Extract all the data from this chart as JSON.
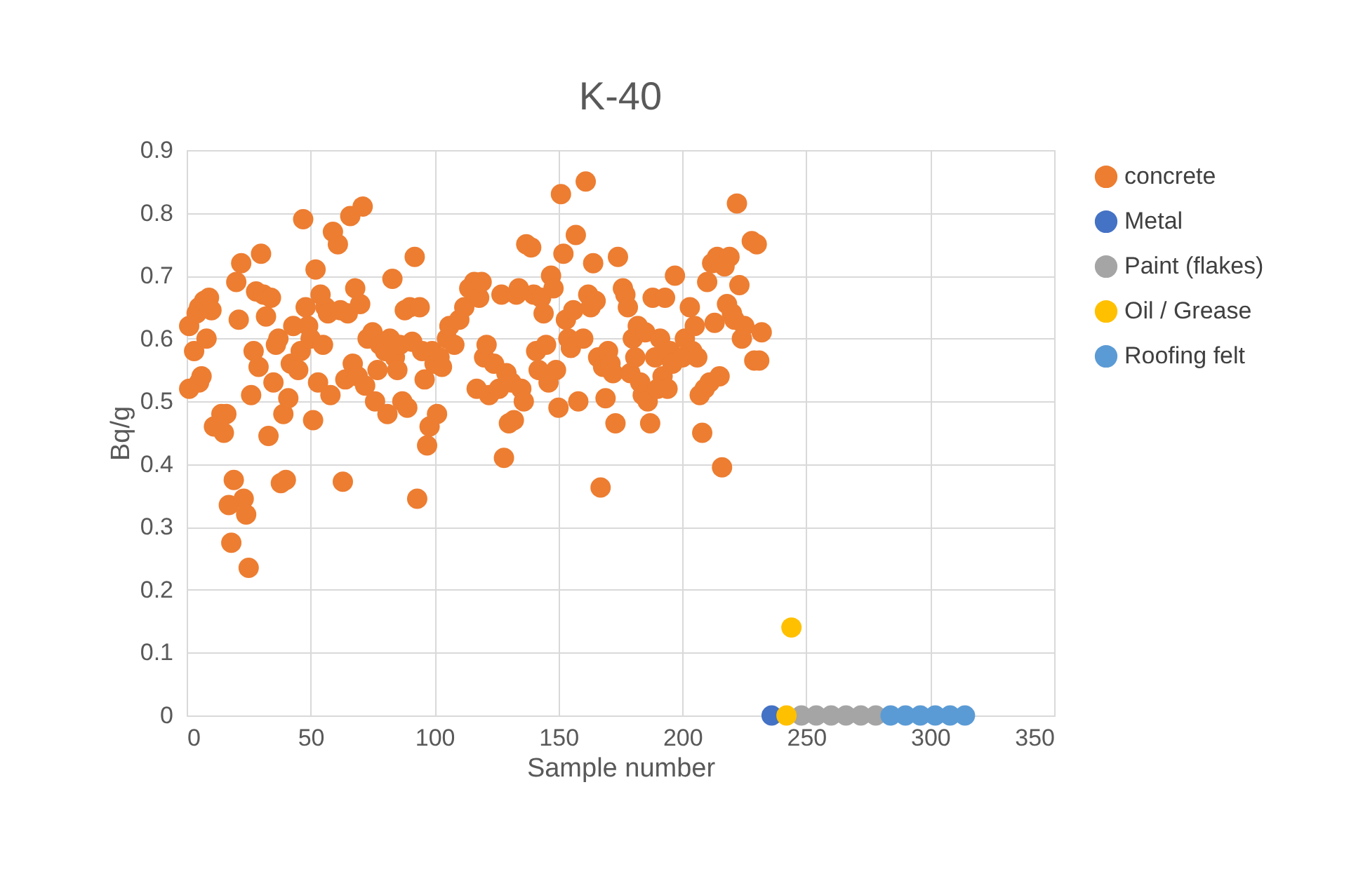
{
  "chart_data": {
    "type": "scatter",
    "title": "K-40",
    "xlabel": "Sample number",
    "ylabel": "Bq/g",
    "xlim": [
      0,
      350
    ],
    "xticks": [
      0,
      50,
      100,
      150,
      200,
      250,
      300,
      350
    ],
    "ylim": [
      0,
      0.9
    ],
    "yticks": [
      {
        "value": 0,
        "label": "0"
      },
      0.1,
      0.2,
      0.3,
      0.4,
      0.5,
      0.6,
      0.7,
      0.8,
      0.9
    ],
    "grid": true,
    "legend": "right",
    "marker": "circle",
    "series": [
      {
        "name": "concrete",
        "color": "#ed7d31",
        "x": [
          1,
          1,
          3,
          4,
          5,
          5,
          6,
          7,
          8,
          9,
          10,
          11,
          14,
          15,
          16,
          17,
          18,
          19,
          20,
          21,
          22,
          23,
          24,
          25,
          26,
          27,
          28,
          29,
          30,
          31,
          32,
          33,
          34,
          35,
          36,
          37,
          38,
          39,
          40,
          41,
          42,
          43,
          45,
          46,
          47,
          48,
          49,
          50,
          51,
          52,
          53,
          54,
          55,
          56,
          57,
          58,
          59,
          61,
          62,
          63,
          64,
          65,
          66,
          67,
          68,
          69,
          70,
          71,
          72,
          73,
          75,
          76,
          77,
          78,
          80,
          81,
          82,
          83,
          84,
          85,
          86,
          87,
          88,
          89,
          90,
          91,
          92,
          93,
          94,
          95,
          96,
          97,
          98,
          99,
          100,
          101,
          102,
          103,
          105,
          106,
          108,
          110,
          112,
          114,
          116,
          117,
          118,
          119,
          120,
          121,
          122,
          124,
          126,
          127,
          128,
          129,
          130,
          131,
          132,
          133,
          134,
          135,
          136,
          137,
          139,
          140,
          141,
          142,
          143,
          144,
          145,
          146,
          147,
          148,
          149,
          150,
          151,
          152,
          153,
          154,
          155,
          156,
          157,
          158,
          160,
          161,
          162,
          163,
          164,
          165,
          166,
          167,
          168,
          169,
          170,
          171,
          172,
          173,
          174,
          176,
          177,
          178,
          179,
          180,
          181,
          182,
          183,
          184,
          185,
          186,
          187,
          188,
          189,
          190,
          191,
          192,
          193,
          194,
          195,
          196,
          197,
          200,
          201,
          203,
          204,
          205,
          206,
          207,
          208,
          209,
          210,
          211,
          212,
          213,
          214,
          215,
          216,
          217,
          218,
          219,
          220,
          221,
          222,
          223,
          224,
          225,
          228,
          229,
          230,
          231,
          232
        ],
        "values": [
          0.62,
          0.52,
          0.58,
          0.64,
          0.53,
          0.65,
          0.54,
          0.66,
          0.6,
          0.665,
          0.645,
          0.46,
          0.48,
          0.45,
          0.48,
          0.335,
          0.275,
          0.375,
          0.69,
          0.63,
          0.72,
          0.345,
          0.32,
          0.235,
          0.51,
          0.58,
          0.675,
          0.555,
          0.735,
          0.67,
          0.635,
          0.445,
          0.665,
          0.53,
          0.59,
          0.6,
          0.37,
          0.48,
          0.375,
          0.505,
          0.56,
          0.62,
          0.55,
          0.58,
          0.79,
          0.65,
          0.62,
          0.6,
          0.47,
          0.71,
          0.53,
          0.67,
          0.59,
          0.65,
          0.64,
          0.51,
          0.77,
          0.75,
          0.645,
          0.372,
          0.535,
          0.64,
          0.795,
          0.56,
          0.68,
          0.54,
          0.655,
          0.81,
          0.525,
          0.6,
          0.61,
          0.5,
          0.55,
          0.59,
          0.58,
          0.48,
          0.6,
          0.695,
          0.57,
          0.55,
          0.59,
          0.5,
          0.645,
          0.49,
          0.65,
          0.595,
          0.73,
          0.345,
          0.65,
          0.58,
          0.535,
          0.43,
          0.46,
          0.58,
          0.56,
          0.48,
          0.57,
          0.555,
          0.6,
          0.62,
          0.59,
          0.63,
          0.65,
          0.68,
          0.69,
          0.52,
          0.665,
          0.69,
          0.57,
          0.59,
          0.51,
          0.56,
          0.52,
          0.67,
          0.41,
          0.545,
          0.465,
          0.53,
          0.47,
          0.67,
          0.68,
          0.52,
          0.5,
          0.75,
          0.745,
          0.67,
          0.58,
          0.55,
          0.665,
          0.64,
          0.59,
          0.53,
          0.7,
          0.68,
          0.55,
          0.49,
          0.83,
          0.735,
          0.63,
          0.6,
          0.585,
          0.645,
          0.765,
          0.5,
          0.6,
          0.85,
          0.67,
          0.65,
          0.72,
          0.66,
          0.57,
          0.363,
          0.555,
          0.505,
          0.58,
          0.56,
          0.545,
          0.465,
          0.73,
          0.68,
          0.67,
          0.65,
          0.545,
          0.6,
          0.57,
          0.62,
          0.53,
          0.51,
          0.61,
          0.5,
          0.465,
          0.665,
          0.57,
          0.52,
          0.6,
          0.54,
          0.665,
          0.52,
          0.58,
          0.56,
          0.7,
          0.57,
          0.6,
          0.65,
          0.58,
          0.62,
          0.57,
          0.51,
          0.45,
          0.52,
          0.69,
          0.53,
          0.72,
          0.625,
          0.73,
          0.54,
          0.395,
          0.715,
          0.655,
          0.73,
          0.64,
          0.63,
          0.815,
          0.685,
          0.6,
          0.62,
          0.755,
          0.565,
          0.75,
          0.565,
          0.61
        ]
      },
      {
        "name": "Metal",
        "color": "#4472c4",
        "x": [
          236
        ],
        "values": [
          0
        ]
      },
      {
        "name": "Paint (flakes)",
        "color": "#a5a5a5",
        "x": [
          248,
          254,
          260,
          266,
          272,
          278
        ],
        "values": [
          0,
          0,
          0,
          0,
          0,
          0
        ]
      },
      {
        "name": "Oil / Grease",
        "color": "#ffc000",
        "x": [
          242,
          244
        ],
        "values": [
          0,
          0.14
        ]
      },
      {
        "name": "Roofing felt",
        "color": "#5b9bd5",
        "x": [
          284,
          290,
          296,
          302,
          308,
          314
        ],
        "values": [
          0,
          0,
          0,
          0,
          0,
          0
        ]
      }
    ]
  }
}
